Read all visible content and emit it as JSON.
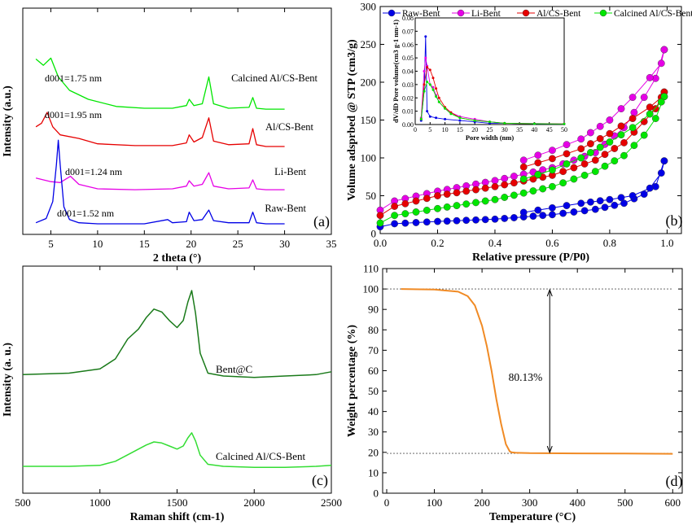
{
  "chart_data": [
    {
      "panel": "(a)",
      "type": "line",
      "xlabel": "2 theta (°)",
      "ylabel": "Intensity (a.u.)",
      "xlim": [
        2,
        35
      ],
      "xticks": [
        "5",
        "10",
        "15",
        "20",
        "25",
        "30",
        "35"
      ],
      "series": [
        {
          "name": "Calcined Al/CS-Bent",
          "color": "#00e600",
          "annotation": "d001=1.75 nm",
          "x": [
            3.4,
            4.2,
            5.0,
            5.8,
            7,
            9,
            12,
            15,
            18,
            19.5,
            19.8,
            20.3,
            21.2,
            21.9,
            22.4,
            24,
            26.2,
            26.6,
            27,
            28,
            30
          ],
          "y": [
            8.5,
            7.8,
            8.6,
            6.5,
            5.0,
            4.0,
            3.2,
            3.0,
            3.0,
            3.3,
            4.0,
            3.3,
            3.5,
            6.5,
            3.5,
            3.0,
            3.1,
            4.2,
            3.0,
            2.9,
            2.9
          ]
        },
        {
          "name": "Al/CS-Bent",
          "color": "#e60000",
          "annotation": "d001=1.95 nm",
          "x": [
            3.4,
            4.0,
            4.6,
            5.2,
            6,
            8,
            10,
            14,
            18,
            19.5,
            19.8,
            20.3,
            21.2,
            21.9,
            22.4,
            24,
            26.2,
            26.6,
            27,
            28,
            30
          ],
          "y": [
            5.2,
            5.6,
            6.8,
            5.2,
            4.3,
            3.9,
            3.3,
            3.1,
            3.1,
            3.4,
            4.3,
            3.5,
            4.0,
            6.2,
            3.6,
            3.2,
            3.3,
            5.0,
            3.2,
            3.0,
            3.0
          ]
        },
        {
          "name": "Li-Bent",
          "color": "#e600e6",
          "annotation": "d001=1.24 nm",
          "x": [
            3.4,
            5,
            6,
            7.1,
            8,
            10,
            14,
            18,
            19.5,
            19.8,
            20.3,
            21.2,
            21.9,
            22.4,
            24,
            26.2,
            26.6,
            27,
            28,
            30
          ],
          "y": [
            4.2,
            3.8,
            3.7,
            4.4,
            3.5,
            3.0,
            2.9,
            3.0,
            3.3,
            3.9,
            3.3,
            3.5,
            4.8,
            3.3,
            3.0,
            3.1,
            4.0,
            3.0,
            2.9,
            2.9
          ]
        },
        {
          "name": "Raw-Bent",
          "color": "#0000e6",
          "annotation": "d001=1.52 nm",
          "x": [
            3.4,
            4.5,
            5.2,
            5.6,
            5.8,
            6.0,
            6.4,
            7,
            8,
            10,
            15,
            17.5,
            18,
            19.5,
            19.8,
            20.3,
            21.2,
            21.9,
            22.4,
            24,
            26.2,
            26.6,
            27,
            28,
            30
          ],
          "y": [
            1.0,
            1.4,
            3.0,
            6.5,
            8.8,
            6.5,
            2.5,
            1.3,
            1.0,
            0.9,
            0.9,
            1.3,
            1.0,
            1.1,
            2.0,
            1.2,
            1.3,
            2.2,
            1.2,
            1.0,
            1.0,
            2.0,
            1.0,
            0.9,
            0.9
          ]
        }
      ]
    },
    {
      "panel": "(b)",
      "type": "scatter",
      "xlabel": "Relative pressure (P/P0)",
      "ylabel": "Volume adsprbed @ STP (cm3/g)",
      "xlim": [
        0,
        1.05
      ],
      "ylim": [
        0,
        300
      ],
      "xticks": [
        "0.0",
        "0.2",
        "0.4",
        "0.6",
        "0.8",
        "1.0"
      ],
      "yticks": [
        "0",
        "50",
        "100",
        "150",
        "200",
        "250",
        "300"
      ],
      "legend": [
        "Raw-Bent",
        "Li-Bent",
        "Al/CS-Bent",
        "Calcined Al/CS-Bent"
      ],
      "series": [
        {
          "name": "Raw-Bent",
          "color": "#0000e6",
          "adsorption": [
            [
              0.0,
              9
            ],
            [
              0.05,
              13
            ],
            [
              0.2,
              16
            ],
            [
              0.4,
              19
            ],
            [
              0.6,
              25
            ],
            [
              0.75,
              32
            ],
            [
              0.85,
              40
            ],
            [
              0.92,
              52
            ],
            [
              0.96,
              62
            ],
            [
              0.99,
              96
            ]
          ],
          "desorption": [
            [
              0.99,
              96
            ],
            [
              0.98,
              80
            ],
            [
              0.94,
              60
            ],
            [
              0.88,
              50
            ],
            [
              0.8,
              45
            ],
            [
              0.7,
              40
            ],
            [
              0.6,
              34
            ],
            [
              0.5,
              28
            ]
          ]
        },
        {
          "name": "Li-Bent",
          "color": "#e600e6",
          "adsorption": [
            [
              0.0,
              31
            ],
            [
              0.05,
              43
            ],
            [
              0.2,
              56
            ],
            [
              0.4,
              70
            ],
            [
              0.6,
              87
            ],
            [
              0.75,
              107
            ],
            [
              0.85,
              140
            ],
            [
              0.92,
              180
            ],
            [
              0.96,
              205
            ],
            [
              0.99,
              243
            ]
          ],
          "desorption": [
            [
              0.99,
              243
            ],
            [
              0.98,
              225
            ],
            [
              0.94,
              206
            ],
            [
              0.88,
              180
            ],
            [
              0.8,
              150
            ],
            [
              0.7,
              125
            ],
            [
              0.6,
              110
            ],
            [
              0.5,
              97
            ]
          ]
        },
        {
          "name": "Al/CS-Bent",
          "color": "#e60000",
          "adsorption": [
            [
              0.0,
              24
            ],
            [
              0.05,
              36
            ],
            [
              0.2,
              50
            ],
            [
              0.4,
              62
            ],
            [
              0.6,
              77
            ],
            [
              0.75,
              97
            ],
            [
              0.85,
              120
            ],
            [
              0.92,
              148
            ],
            [
              0.96,
              165
            ],
            [
              0.99,
              187
            ]
          ],
          "desorption": [
            [
              0.99,
              187
            ],
            [
              0.98,
              180
            ],
            [
              0.94,
              167
            ],
            [
              0.88,
              152
            ],
            [
              0.8,
              132
            ],
            [
              0.7,
              112
            ],
            [
              0.6,
              99
            ],
            [
              0.5,
              88
            ]
          ]
        },
        {
          "name": "Calcined Al/CS-Bent",
          "color": "#00e600",
          "adsorption": [
            [
              0.0,
              14
            ],
            [
              0.05,
              24
            ],
            [
              0.2,
              33
            ],
            [
              0.4,
              45
            ],
            [
              0.6,
              62
            ],
            [
              0.75,
              82
            ],
            [
              0.85,
              103
            ],
            [
              0.92,
              130
            ],
            [
              0.96,
              152
            ],
            [
              0.99,
              181
            ]
          ],
          "desorption": [
            [
              0.99,
              181
            ],
            [
              0.98,
              174
            ],
            [
              0.94,
              158
            ],
            [
              0.88,
              140
            ],
            [
              0.8,
              121
            ],
            [
              0.7,
              100
            ],
            [
              0.6,
              84
            ],
            [
              0.5,
              72
            ]
          ]
        }
      ],
      "inset": {
        "xlabel": "Pore width (nm)",
        "ylabel": "dV/dD Pore volume(cm3 g-1 nm-1)",
        "xlim": [
          0,
          50
        ],
        "ylim": [
          0,
          0.08
        ],
        "xticks": [
          "0",
          "5",
          "10",
          "15",
          "20",
          "25",
          "30",
          "35",
          "40",
          "45",
          "50"
        ],
        "yticks": [
          "0.00",
          "0.01",
          "0.02",
          "0.03",
          "0.04",
          "0.05",
          "0.06",
          "0.07",
          "0.08"
        ],
        "series": [
          {
            "name": "Raw-Bent",
            "color": "#0000e6",
            "points": [
              [
                2,
                0.003
              ],
              [
                3,
                0.025
              ],
              [
                3.5,
                0.066
              ],
              [
                4,
                0.01
              ],
              [
                5,
                0.006
              ],
              [
                7,
                0.005
              ],
              [
                10,
                0.004
              ],
              [
                15,
                0.003
              ],
              [
                20,
                0.002
              ],
              [
                25,
                0.001
              ],
              [
                30,
                0.001
              ],
              [
                40,
                0.0005
              ],
              [
                50,
                0.0003
              ]
            ]
          },
          {
            "name": "Li-Bent",
            "color": "#e600e6",
            "points": [
              [
                2,
                0.005
              ],
              [
                3,
                0.04
              ],
              [
                3.5,
                0.05
              ],
              [
                4,
                0.044
              ],
              [
                5,
                0.03
              ],
              [
                6,
                0.028
              ],
              [
                7,
                0.022
              ],
              [
                8,
                0.017
              ],
              [
                10,
                0.012
              ],
              [
                12,
                0.009
              ],
              [
                15,
                0.006
              ],
              [
                20,
                0.004
              ],
              [
                25,
                0.002
              ],
              [
                30,
                0.001
              ],
              [
                40,
                0.0008
              ],
              [
                50,
                0.0005
              ]
            ]
          },
          {
            "name": "Al/CS-Bent",
            "color": "#e60000",
            "points": [
              [
                2,
                0.004
              ],
              [
                3,
                0.03
              ],
              [
                4,
                0.043
              ],
              [
                5,
                0.041
              ],
              [
                6,
                0.035
              ],
              [
                7,
                0.027
              ],
              [
                8,
                0.02
              ],
              [
                10,
                0.013
              ],
              [
                12,
                0.009
              ],
              [
                15,
                0.005
              ],
              [
                20,
                0.003
              ],
              [
                25,
                0.002
              ],
              [
                30,
                0.001
              ],
              [
                40,
                0.0006
              ],
              [
                50,
                0.0004
              ]
            ]
          },
          {
            "name": "Calcined Al/CS-Bent",
            "color": "#00e600",
            "points": [
              [
                2,
                0.004
              ],
              [
                3,
                0.025
              ],
              [
                4,
                0.032
              ],
              [
                5,
                0.03
              ],
              [
                6,
                0.026
              ],
              [
                7,
                0.021
              ],
              [
                8,
                0.017
              ],
              [
                10,
                0.012
              ],
              [
                12,
                0.008
              ],
              [
                15,
                0.005
              ],
              [
                20,
                0.003
              ],
              [
                25,
                0.002
              ],
              [
                30,
                0.001
              ],
              [
                40,
                0.0006
              ],
              [
                50,
                0.0004
              ]
            ]
          }
        ]
      }
    },
    {
      "panel": "(c)",
      "type": "line",
      "xlabel": "Raman shift (cm-1)",
      "ylabel": "Intensity (a. u.)",
      "xlim": [
        500,
        2500
      ],
      "xticks": [
        "500",
        "1000",
        "1500",
        "2000",
        "2500"
      ],
      "series": [
        {
          "name": "Bent@C",
          "color": "#1a7a1a",
          "x": [
            500,
            800,
            1000,
            1100,
            1180,
            1250,
            1300,
            1350,
            1400,
            1450,
            1500,
            1540,
            1570,
            1595,
            1620,
            1650,
            1700,
            1800,
            2000,
            2200,
            2400,
            2500
          ],
          "y": [
            4.5,
            4.6,
            4.9,
            5.6,
            7.0,
            7.7,
            8.5,
            9.1,
            8.9,
            8.3,
            7.8,
            8.3,
            9.6,
            10.4,
            8.8,
            6.0,
            4.6,
            4.4,
            4.3,
            4.4,
            4.5,
            4.7
          ]
        },
        {
          "name": "Calcined Al/CS-Bent",
          "color": "#33dd33",
          "x": [
            500,
            800,
            1000,
            1100,
            1200,
            1250,
            1300,
            1350,
            1400,
            1450,
            1500,
            1540,
            1570,
            1595,
            1620,
            1650,
            1700,
            1800,
            2000,
            2200,
            2400,
            2500
          ],
          "y": [
            0.8,
            0.8,
            0.9,
            1.3,
            2.1,
            2.5,
            2.9,
            3.2,
            3.1,
            2.8,
            2.5,
            2.8,
            3.6,
            4.1,
            3.3,
            1.9,
            1.0,
            0.8,
            0.7,
            0.7,
            0.8,
            0.9
          ]
        }
      ]
    },
    {
      "panel": "(d)",
      "type": "line",
      "xlabel": "Temperature (°C)",
      "ylabel": "Weight percentage (%)",
      "xlim": [
        0,
        620
      ],
      "ylim": [
        0,
        110
      ],
      "xticks": [
        "0",
        "100",
        "200",
        "300",
        "400",
        "500",
        "600"
      ],
      "yticks": [
        "0",
        "10",
        "20",
        "30",
        "40",
        "50",
        "60",
        "70",
        "80",
        "90",
        "100",
        "110"
      ],
      "annotation": "80.13%",
      "reference_lines": [
        100,
        19.5
      ],
      "series": [
        {
          "name": "",
          "color": "#f08a24",
          "x": [
            30,
            100,
            150,
            170,
            185,
            200,
            210,
            220,
            230,
            240,
            250,
            258,
            262,
            270,
            300,
            400,
            500,
            600
          ],
          "y": [
            100,
            99.7,
            98.7,
            96.5,
            92,
            82,
            72,
            60,
            46,
            34,
            24,
            20.5,
            20,
            19.8,
            19.6,
            19.5,
            19.4,
            19.3
          ]
        }
      ]
    }
  ]
}
